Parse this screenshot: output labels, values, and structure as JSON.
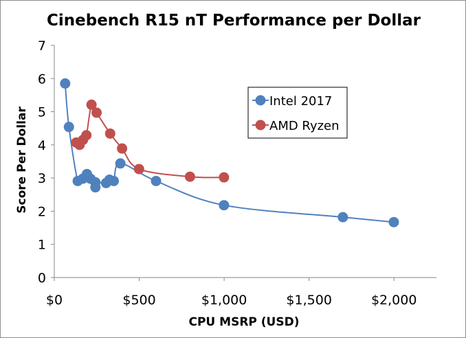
{
  "chart_data": {
    "type": "line",
    "title": "Cinebench R15 nT Performance per Dollar",
    "xlabel": "CPU MSRP (USD)",
    "ylabel": "Score Per Dollar",
    "xlim": [
      0,
      2250
    ],
    "ylim": [
      0,
      7
    ],
    "x_ticks": [
      0,
      500,
      1000,
      1500,
      2000
    ],
    "x_tick_labels": [
      "$0",
      "$500",
      "$1,000",
      "$1,500",
      "$2,000"
    ],
    "y_ticks": [
      0,
      1,
      2,
      3,
      4,
      5,
      6,
      7
    ],
    "y_tick_labels": [
      "0",
      "1",
      "2",
      "3",
      "4",
      "5",
      "6",
      "7"
    ],
    "grid": false,
    "legend_position": "upper-right",
    "smoothed": true,
    "series": [
      {
        "name": "Intel 2017",
        "color": "#4f81bd",
        "points": [
          [
            64,
            5.85
          ],
          [
            86,
            4.54
          ],
          [
            138,
            2.91
          ],
          [
            168,
            2.98
          ],
          [
            192,
            3.12
          ],
          [
            213,
            2.98
          ],
          [
            242,
            2.72
          ],
          [
            242,
            2.87
          ],
          [
            305,
            2.85
          ],
          [
            325,
            2.95
          ],
          [
            350,
            2.91
          ],
          [
            389,
            3.44
          ],
          [
            599,
            2.91
          ],
          [
            999,
            2.18
          ],
          [
            1699,
            1.82
          ],
          [
            1999,
            1.67
          ]
        ]
      },
      {
        "name": "AMD Ryzen",
        "color": "#c0504d",
        "points": [
          [
            129,
            4.07
          ],
          [
            149,
            4.0
          ],
          [
            169,
            4.15
          ],
          [
            189,
            4.29
          ],
          [
            219,
            5.21
          ],
          [
            249,
            4.97
          ],
          [
            329,
            4.34
          ],
          [
            399,
            3.89
          ],
          [
            499,
            3.27
          ],
          [
            799,
            3.04
          ],
          [
            999,
            3.02
          ]
        ]
      }
    ]
  }
}
